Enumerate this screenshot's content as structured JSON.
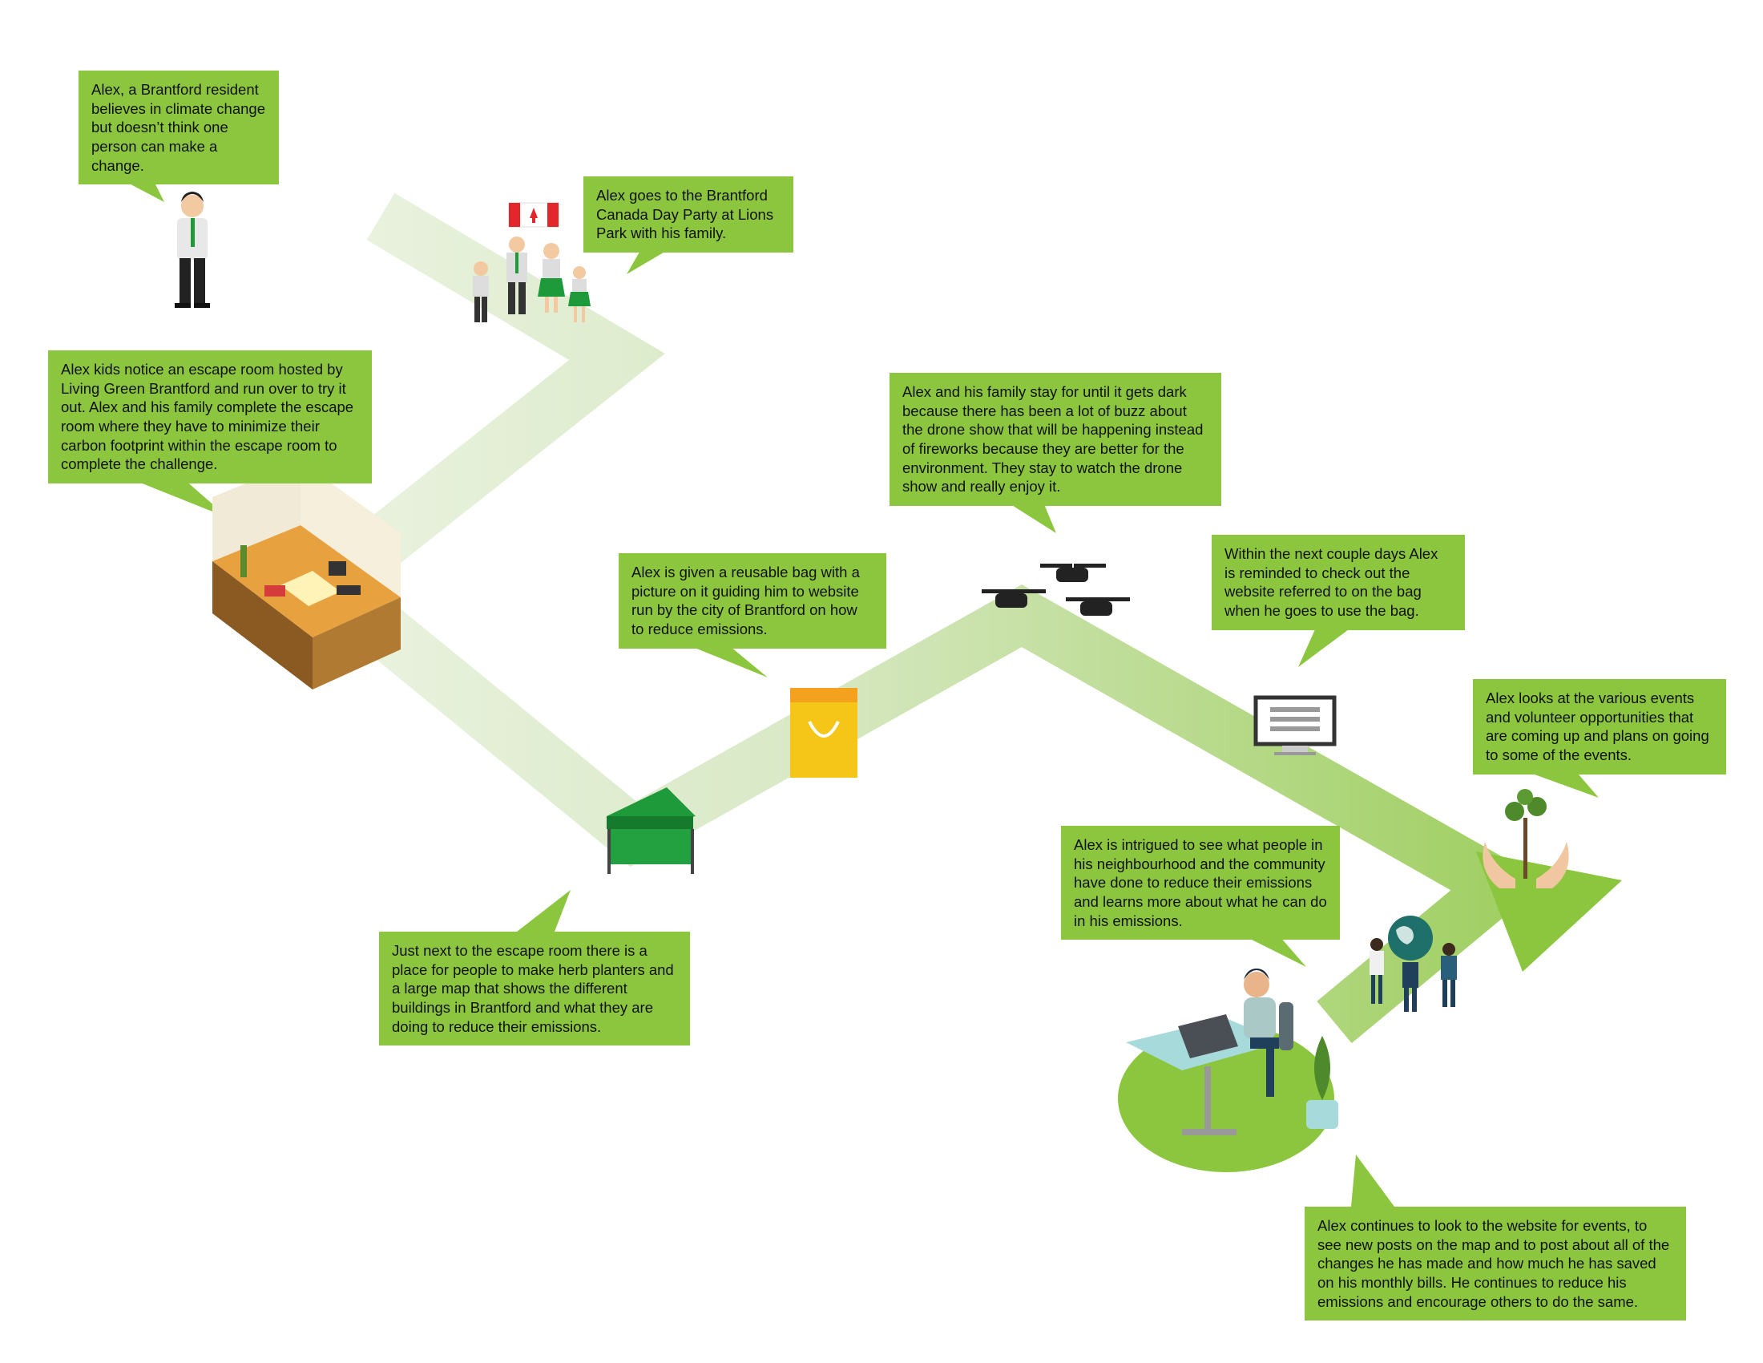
{
  "colors": {
    "callout_green": "#8cc63f",
    "path_light": "#eef4e6",
    "path_dark": "#8cc63f",
    "tent_green": "#1f9a3a",
    "bag_yellow": "#f5c518",
    "bag_orange": "#f4a21d",
    "flag_red": "#e3262b"
  },
  "steps": [
    {
      "text": "Alex, a Brantford resident believes in climate change but doesn’t think one person can make a change.",
      "icon": "person-icon"
    },
    {
      "text": "Alex goes to the Brantford Canada Day Party at Lions Park with his family.",
      "icon": "family-with-canada-flag-icon"
    },
    {
      "text": "Alex kids notice an escape room hosted by Living Green Brantford and run over to try it out. Alex and his family complete the escape room where they have to minimize their carbon footprint within the escape room to complete the challenge.",
      "icon": "escape-room-icon"
    },
    {
      "text": "Just next to the escape room there is a place for people to make herb planters and a large map that shows the different buildings in Brantford and what they are doing to reduce their emissions.",
      "icon": "tent-icon"
    },
    {
      "text": "Alex is given a reusable bag with a picture on it guiding him to website run by the city of Brantford on how to reduce emissions.",
      "icon": "shopping-bag-icon"
    },
    {
      "text": "Alex and his family stay for until it gets dark because there has been a lot of buzz about the drone show that will be happening instead of fireworks because they are better for the environment. They stay to watch the drone show and really enjoy it.",
      "icon": "drones-icon"
    },
    {
      "text": "Within the next couple days Alex is reminded to check out the website referred to on the bag when he goes to use the bag.",
      "icon": "computer-monitor-icon"
    },
    {
      "text": "Alex looks at the various events and volunteer opportunities that are coming up and plans on going to some of the events.",
      "icon": "hands-holding-plant-icon"
    },
    {
      "text": "Alex is intrigued to see what people in his neighbourhood and the community have done to reduce their emissions and learns more about what he can do in his emissions.",
      "icon": "people-with-globe-icon"
    },
    {
      "text": "Alex continues to look to the website for events, to see new posts on the map and to post about all of the changes he has made and how much he has saved on his monthly bills. He continues to reduce his emissions and encourage others to do the same.",
      "icon": "person-at-desk-icon"
    }
  ]
}
